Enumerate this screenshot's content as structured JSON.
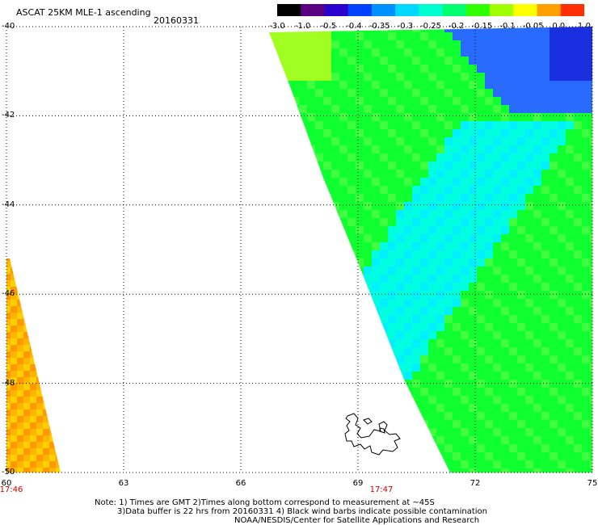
{
  "header": {
    "title": "ASCAT 25KM MLE-1 ascending",
    "date": "20160331"
  },
  "colorbar": {
    "labels": [
      "-3.0",
      "-1.0",
      "-0.5",
      "-0.4",
      "-0.35",
      "-0.3",
      "-0.25",
      "-0.2",
      "-0.15",
      "-0.1",
      "-0.05",
      "0.0",
      "1.0"
    ],
    "colors": [
      "#000000",
      "#5a0080",
      "#2a00cc",
      "#0040ff",
      "#0090ff",
      "#00d8ff",
      "#00ffd0",
      "#00ff70",
      "#30ff00",
      "#a0ff00",
      "#ffff00",
      "#ffa000",
      "#ff3000"
    ]
  },
  "map": {
    "lat_labels": [
      "-40",
      "-42",
      "-44",
      "-46",
      "-48",
      "-50"
    ],
    "lon_labels": [
      "60",
      "63",
      "66",
      "69",
      "72",
      "75"
    ],
    "time_labels": [
      {
        "text": "17:46",
        "lon": 60
      },
      {
        "text": "17:47",
        "lon": 69.6
      }
    ]
  },
  "notes": [
    "Note: 1) Times are GMT 2)Times along bottom correspond to measurement at ~45S",
    "3)Data buffer is 22 hrs from 20160331 4) Black wind barbs indicate possible contamination",
    "NOAA/NESDIS/Center for Satellite Applications and Research"
  ]
}
